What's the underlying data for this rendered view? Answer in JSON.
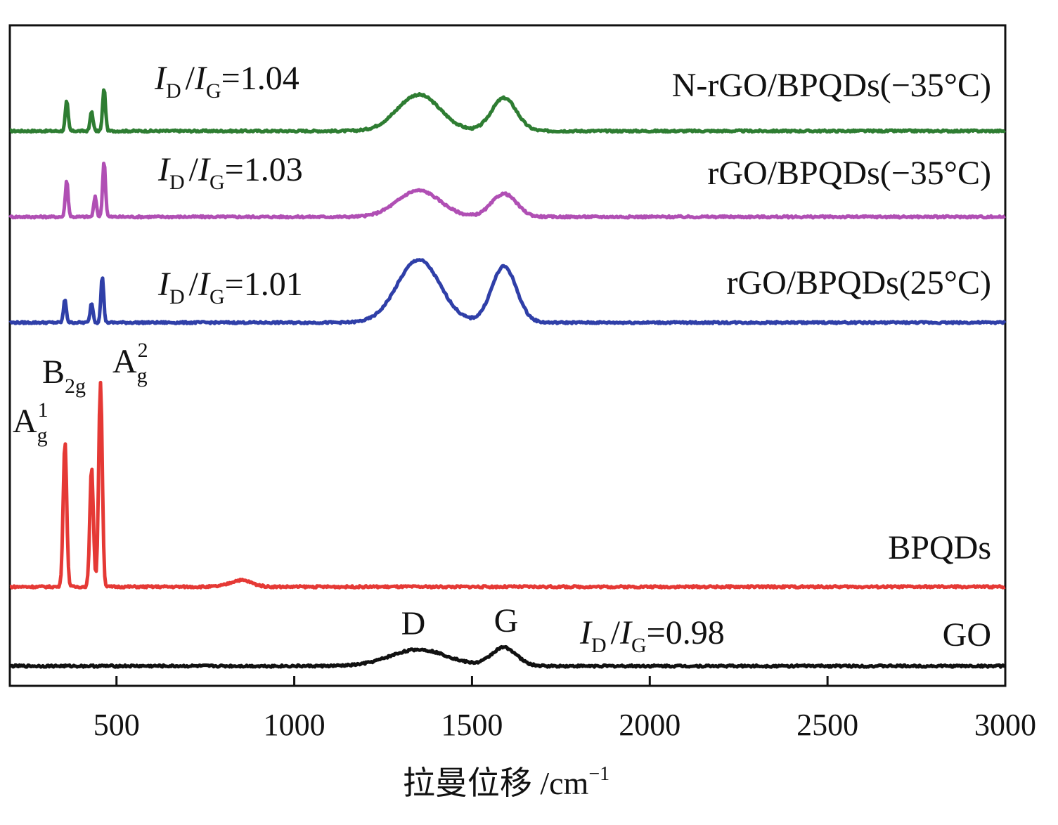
{
  "chart_data": {
    "type": "line",
    "title": "",
    "xlabel": "拉曼位移 /cm",
    "xlabel_sup": "−1",
    "ylabel": "",
    "xlim": [
      200,
      3000
    ],
    "ylim": [
      0,
      10
    ],
    "xticks": [
      500,
      1000,
      1500,
      2000,
      2500,
      3000
    ],
    "xtick_labels": [
      "500",
      "1000",
      "1500",
      "2000",
      "2500",
      "3000"
    ],
    "series": [
      {
        "name": "N-rGO/BPQDs(−35°C)",
        "color": "#2e7d32",
        "baseline": 8.4,
        "ratio": {
          "label_main": "I",
          "sub1": "D",
          "slash": "/",
          "label_main2": "I",
          "sub2": "G",
          "value": "=1.04"
        },
        "peaks": [
          [
            360,
            0.45,
            4
          ],
          [
            430,
            0.3,
            4
          ],
          [
            465,
            0.65,
            4
          ],
          [
            1350,
            0.55,
            60
          ],
          [
            1590,
            0.5,
            35
          ]
        ]
      },
      {
        "name": "rGO/BPQDs(−35°C)",
        "color": "#b04fb4",
        "baseline": 7.1,
        "ratio": {
          "label_main": "I",
          "sub1": "D",
          "slash": "/",
          "label_main2": "I",
          "sub2": "G",
          "value": "=1.03"
        },
        "peaks": [
          [
            360,
            0.55,
            4
          ],
          [
            440,
            0.3,
            4
          ],
          [
            465,
            0.85,
            4
          ],
          [
            1350,
            0.4,
            60
          ],
          [
            1590,
            0.35,
            35
          ]
        ]
      },
      {
        "name": "rGO/BPQDs(25°C)",
        "color": "#2f3fa8",
        "baseline": 5.5,
        "ratio": {
          "label_main": "I",
          "sub1": "D",
          "slash": "/",
          "label_main2": "I",
          "sub2": "G",
          "value": "=1.01"
        },
        "peaks": [
          [
            355,
            0.35,
            4
          ],
          [
            430,
            0.3,
            4
          ],
          [
            460,
            0.7,
            4
          ],
          [
            1350,
            0.95,
            60
          ],
          [
            1590,
            0.85,
            35
          ]
        ]
      },
      {
        "name": "BPQDs",
        "color": "#e53935",
        "baseline": 1.5,
        "ratio": null,
        "peaks": [
          [
            355,
            2.2,
            5
          ],
          [
            430,
            1.8,
            5
          ],
          [
            455,
            3.1,
            5
          ],
          [
            850,
            0.1,
            30
          ]
        ]
      },
      {
        "name": "GO",
        "color": "#111111",
        "baseline": 0.3,
        "ratio": {
          "label_main": "I",
          "sub1": "D",
          "slash": "/",
          "label_main2": "I",
          "sub2": "G",
          "value": "=0.98"
        },
        "peaks": [
          [
            1350,
            0.25,
            80
          ],
          [
            1590,
            0.28,
            35
          ]
        ]
      }
    ],
    "annotations": {
      "Ag1": {
        "main": "A",
        "sub": "g",
        "sup": "1"
      },
      "B2g": {
        "main": "B",
        "sub": "2g"
      },
      "Ag2": {
        "main": "A",
        "sub": "g",
        "sup": "2"
      },
      "D": "D",
      "G": "G"
    }
  }
}
